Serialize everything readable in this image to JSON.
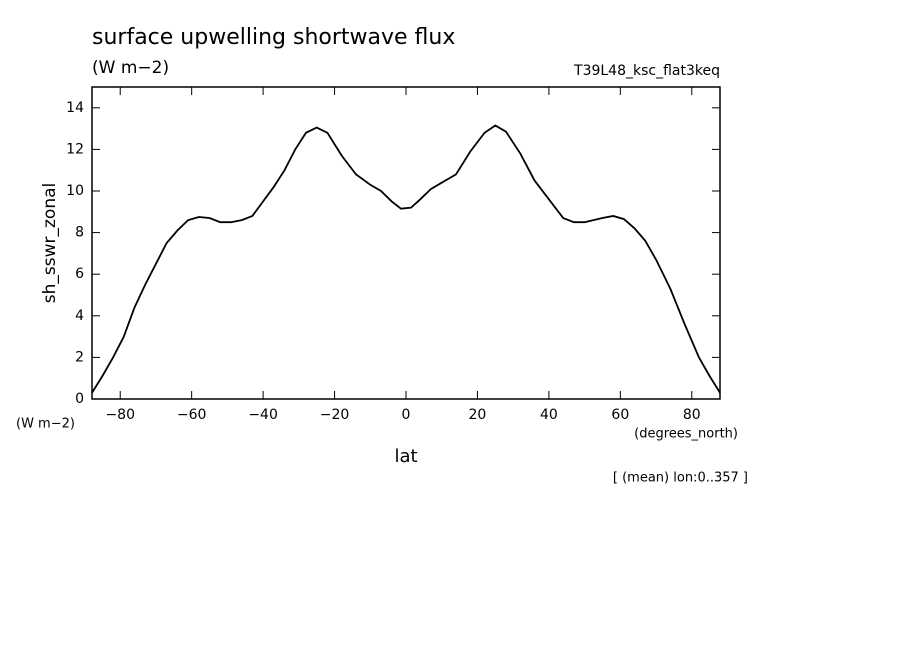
{
  "chart_data": {
    "type": "line",
    "title": "surface upwelling shortwave flux",
    "subtitle": "(W m−2)",
    "run_label": "T39L48_ksc_flat3keq",
    "ylabel": "sh_sswr_zonal",
    "y_units": "(W m−2)",
    "x_units": "(degrees_north)",
    "xlabel": "lat",
    "note": "[ (mean) lon:0..357 ]",
    "x": [
      -87.9,
      -85,
      -82,
      -79,
      -76,
      -73,
      -70,
      -67,
      -64,
      -61,
      -58,
      -55,
      -52,
      -49,
      -46,
      -43,
      -40,
      -37,
      -34,
      -31,
      -28,
      -25,
      -22,
      -18,
      -14,
      -10,
      -7,
      -4,
      -1.4,
      1.4,
      4,
      7,
      10,
      14,
      18,
      22,
      25,
      28,
      32,
      36,
      40,
      44,
      47,
      50,
      55,
      58,
      61,
      64,
      67,
      70,
      74,
      78,
      82,
      85,
      87.9
    ],
    "series": [
      {
        "color": "#000000",
        "values": [
          0.3,
          1.1,
          2.0,
          3.0,
          4.4,
          5.5,
          6.5,
          7.5,
          8.1,
          8.6,
          8.75,
          8.7,
          8.5,
          8.5,
          8.6,
          8.8,
          9.5,
          10.2,
          11.0,
          12.0,
          12.8,
          13.05,
          12.8,
          11.7,
          10.8,
          10.3,
          10.0,
          9.5,
          9.15,
          9.2,
          9.6,
          10.1,
          10.4,
          10.8,
          11.9,
          12.8,
          13.15,
          12.85,
          11.8,
          10.5,
          9.6,
          8.7,
          8.5,
          8.5,
          8.7,
          8.8,
          8.65,
          8.2,
          7.6,
          6.7,
          5.3,
          3.6,
          2.0,
          1.1,
          0.3
        ]
      }
    ],
    "xlim": [
      -87.9,
      87.9
    ],
    "ylim": [
      0,
      15
    ],
    "xticks": [
      {
        "value": -80,
        "label": "−80"
      },
      {
        "value": -60,
        "label": "−60"
      },
      {
        "value": -40,
        "label": "−40"
      },
      {
        "value": -20,
        "label": "−20"
      },
      0,
      20,
      40,
      60,
      80
    ],
    "yticks": [
      0,
      2,
      4,
      6,
      8,
      10,
      12,
      14
    ]
  }
}
